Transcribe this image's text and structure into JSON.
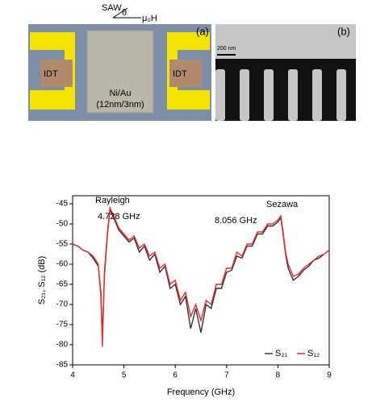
{
  "figure": {
    "saw": "SAW",
    "theta": "θ",
    "field": "μ₀H",
    "panel_a": "(a)",
    "idt_left": "IDT",
    "idt_right": "IDT",
    "film": "Ni/Au",
    "film_thickness": "(12nm/3nm)",
    "panel_b": "(b)",
    "scale_bar": "200 nm"
  },
  "chart_data": {
    "type": "line",
    "xlabel": "Frequency (GHz)",
    "ylabel": "S₂₁, S₁₂ (dB)",
    "annotations": [
      "Rayleigh",
      "4.728 GHz",
      "Sezawa",
      "8.056 GHz"
    ],
    "x": [
      4.0,
      4.1,
      4.2,
      4.3,
      4.4,
      4.5,
      4.55,
      4.58,
      4.62,
      4.68,
      4.728,
      4.8,
      4.9,
      5.0,
      5.1,
      5.2,
      5.3,
      5.4,
      5.5,
      5.6,
      5.7,
      5.8,
      5.9,
      6.0,
      6.1,
      6.2,
      6.3,
      6.4,
      6.5,
      6.6,
      6.7,
      6.8,
      6.9,
      7.0,
      7.1,
      7.2,
      7.3,
      7.4,
      7.5,
      7.6,
      7.7,
      7.8,
      7.9,
      8.0,
      8.056,
      8.1,
      8.15,
      8.2,
      8.3,
      8.4,
      8.5,
      8.6,
      8.7,
      8.8,
      8.9,
      9.0
    ],
    "series": [
      {
        "name": "S₂₁",
        "color": "#333333",
        "values": [
          -55,
          -55.5,
          -56.5,
          -57,
          -58.5,
          -60.5,
          -67,
          -78,
          -63,
          -52.5,
          -46.5,
          -48.5,
          -51.5,
          -53,
          -54.5,
          -53.5,
          -57,
          -55.5,
          -59,
          -57.5,
          -62,
          -60.5,
          -66,
          -65,
          -70,
          -68,
          -76,
          -71,
          -77,
          -70,
          -71,
          -66,
          -66,
          -62,
          -61.5,
          -58,
          -58.5,
          -55.5,
          -55.5,
          -52.5,
          -52.5,
          -50.5,
          -50.5,
          -49.5,
          -48.5,
          -52.5,
          -57.5,
          -61,
          -64,
          -63,
          -61.5,
          -60.5,
          -59,
          -58.5,
          -57.5,
          -56.5
        ]
      },
      {
        "name": "S₁₂",
        "color": "#ee2b2b",
        "values": [
          -55,
          -55.5,
          -56.5,
          -57,
          -58,
          -60,
          -68,
          -80.5,
          -62,
          -52,
          -46,
          -48,
          -51,
          -52.5,
          -54,
          -53,
          -56,
          -55,
          -58,
          -57,
          -61,
          -60,
          -65,
          -64,
          -69,
          -67,
          -73,
          -70,
          -74,
          -69,
          -70,
          -65,
          -65,
          -61,
          -61,
          -57,
          -58,
          -55,
          -55,
          -52,
          -52,
          -50,
          -50,
          -49,
          -48,
          -52,
          -57,
          -60,
          -63,
          -62.5,
          -61,
          -60,
          -59,
          -58,
          -57.5,
          -56.5
        ]
      }
    ],
    "xlim": [
      4,
      9
    ],
    "xticks": [
      4,
      5,
      6,
      7,
      8,
      9
    ],
    "ylim": [
      -85,
      -43
    ],
    "yticks": [
      -85,
      -80,
      -75,
      -70,
      -65,
      -60,
      -55,
      -50,
      -45
    ],
    "legend": "lower right"
  }
}
